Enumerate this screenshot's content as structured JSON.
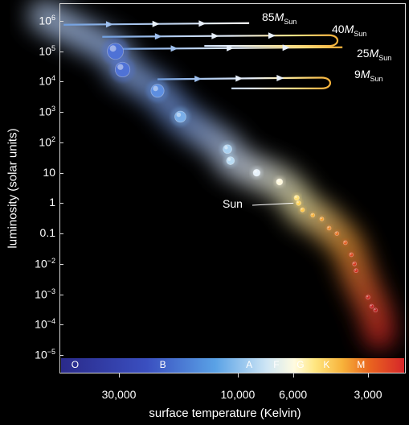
{
  "chart_data": {
    "type": "scatter",
    "xlabel": "surface temperature (Kelvin)",
    "ylabel": "luminosity (solar units)",
    "x_scale": "log-reversed",
    "y_scale": "log",
    "y_ticks": [
      "10^6",
      "10^5",
      "10^4",
      "10^3",
      "10^2",
      "10",
      "1",
      "0.1",
      "10^-2",
      "10^-3",
      "10^-4",
      "10^-5"
    ],
    "y_tick_values": [
      1000000,
      100000,
      10000,
      1000,
      100,
      10,
      1,
      0.1,
      0.01,
      0.001,
      0.0001,
      1e-05
    ],
    "x_ticks": [
      "30,000",
      "10,000",
      "6,000",
      "3,000"
    ],
    "x_tick_values": [
      30000,
      10000,
      6000,
      3000
    ],
    "spectral_classes": [
      "O",
      "B",
      "A",
      "F",
      "G",
      "K",
      "M"
    ],
    "spectral_class_temps": [
      45000,
      20000,
      9000,
      7000,
      5600,
      4400,
      3200
    ],
    "main_sequence_stars": [
      {
        "temp": 31000,
        "lum": 100000,
        "color": "#4f72d6"
      },
      {
        "temp": 29000,
        "lum": 25000,
        "color": "#4f72d6"
      },
      {
        "temp": 21000,
        "lum": 5000,
        "color": "#5d8ee0"
      },
      {
        "temp": 17000,
        "lum": 700,
        "color": "#79aee8"
      },
      {
        "temp": 11000,
        "lum": 60,
        "color": "#a9d0f0"
      },
      {
        "temp": 10700,
        "lum": 25,
        "color": "#b9dbf3"
      },
      {
        "temp": 8400,
        "lum": 10,
        "color": "#e6f1fa"
      },
      {
        "temp": 6800,
        "lum": 5,
        "color": "#fff8dc"
      },
      {
        "temp": 5800,
        "lum": 1.5,
        "color": "#ffe27a"
      },
      {
        "temp": 5700,
        "lum": 1,
        "color": "#ffd45a"
      },
      {
        "temp": 5500,
        "lum": 0.6,
        "color": "#ffc64a"
      },
      {
        "temp": 5000,
        "lum": 0.4,
        "color": "#f7b13a"
      },
      {
        "temp": 4600,
        "lum": 0.3,
        "color": "#f3a034"
      },
      {
        "temp": 4300,
        "lum": 0.15,
        "color": "#ee8a2d"
      },
      {
        "temp": 4000,
        "lum": 0.1,
        "color": "#e97628"
      },
      {
        "temp": 3700,
        "lum": 0.05,
        "color": "#e46024"
      },
      {
        "temp": 3500,
        "lum": 0.02,
        "color": "#de4a22"
      },
      {
        "temp": 3400,
        "lum": 0.01,
        "color": "#d83a20"
      },
      {
        "temp": 3350,
        "lum": 0.006,
        "color": "#d22f1f"
      },
      {
        "temp": 3000,
        "lum": 0.0008,
        "color": "#cc2a22"
      },
      {
        "temp": 2900,
        "lum": 0.0004,
        "color": "#c42424"
      },
      {
        "temp": 2800,
        "lum": 0.0003,
        "color": "#bb2222"
      }
    ],
    "evolutionary_tracks": [
      {
        "label_main": "85M",
        "label_sub": "Sun",
        "lum": 750000,
        "temp_start": 50000,
        "temp_end": 9000
      },
      {
        "label_main": "40M",
        "label_sub": "Sun",
        "lum": 300000,
        "temp_start": 35000,
        "temp_end": 4300,
        "loop_lum": 150000
      },
      {
        "label_main": "25M",
        "label_sub": "Sun",
        "lum": 120000,
        "temp_start": 30000,
        "temp_end": 3800
      },
      {
        "label_main": "9M",
        "label_sub": "Sun",
        "lum": 12000,
        "temp_start": 21000,
        "temp_end": 4600,
        "loop_lum": 6000
      }
    ],
    "annotations": [
      {
        "text": "Sun",
        "temp": 5800,
        "lum": 1
      }
    ]
  }
}
